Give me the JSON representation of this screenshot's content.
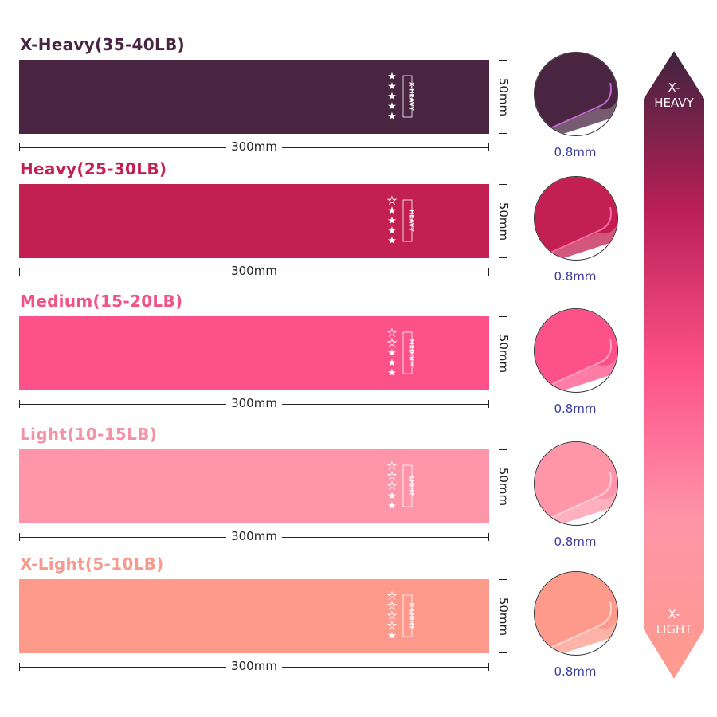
{
  "bands": [
    {
      "title": "X-Heavy(35-40LB)",
      "tag": "X-HEAVY",
      "stars_filled": 5,
      "stars_total": 5,
      "length": "300mm",
      "width": "50mm",
      "thickness": "0.8mm",
      "color": "#4a2541",
      "title_color": "#4a2541",
      "edge_color": "#c06ad0"
    },
    {
      "title": "Heavy(25-30LB)",
      "tag": "HEAVY",
      "stars_filled": 4,
      "stars_total": 5,
      "length": "300mm",
      "width": "50mm",
      "thickness": "0.8mm",
      "color": "#c21f52",
      "title_color": "#c21f52",
      "edge_color": "#ff6aa8"
    },
    {
      "title": "Medium(15-20LB)",
      "tag": "MEDIUM",
      "stars_filled": 3,
      "stars_total": 5,
      "length": "300mm",
      "width": "50mm",
      "thickness": "0.8mm",
      "color": "#fd5189",
      "title_color": "#f05485",
      "edge_color": "#ffa0c0"
    },
    {
      "title": "Light(10-15LB)",
      "tag": "LIGHT",
      "stars_filled": 2,
      "stars_total": 5,
      "length": "300mm",
      "width": "50mm",
      "thickness": "0.8mm",
      "color": "#fe95a8",
      "title_color": "#f692a6",
      "edge_color": "#ffd0da"
    },
    {
      "title": "X-Light(5-10LB)",
      "tag": "X-LIGHT",
      "stars_filled": 1,
      "stars_total": 5,
      "length": "300mm",
      "width": "50mm",
      "thickness": "0.8mm",
      "color": "#fe9a8c",
      "title_color": "#f79a8d",
      "edge_color": "#ffd6d0"
    }
  ],
  "scale": {
    "top_label": "X-\nHEAVY",
    "bottom_label": "X-\nLIGHT",
    "gradient": [
      "#4a2541",
      "#c21f52",
      "#fd5189",
      "#fe95a8",
      "#fe9a8c"
    ]
  }
}
